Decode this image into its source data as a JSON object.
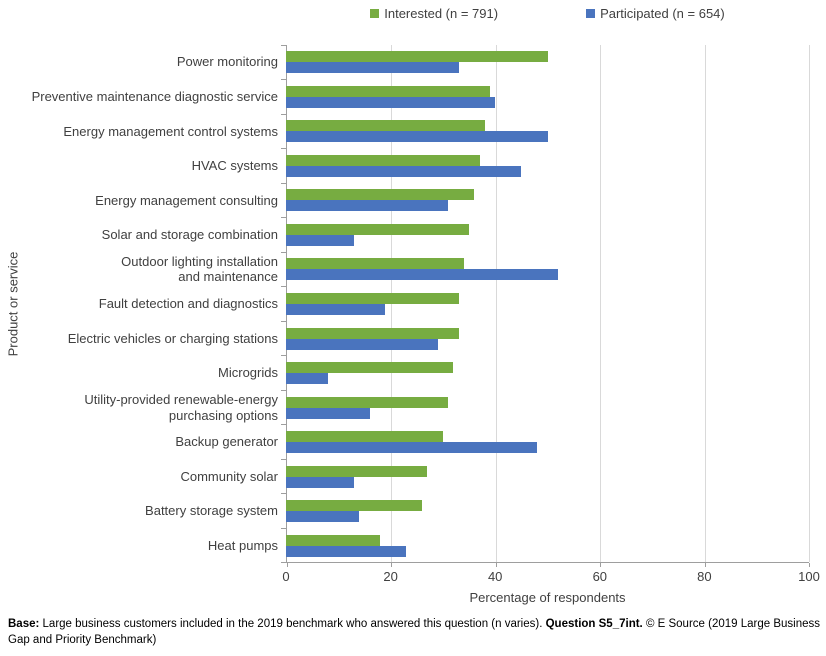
{
  "chart_data": {
    "type": "bar",
    "orientation": "horizontal",
    "title": "",
    "xlabel": "Percentage of respondents",
    "ylabel": "Product or service",
    "xlim": [
      0,
      100
    ],
    "xticks": [
      0,
      20,
      40,
      60,
      80,
      100
    ],
    "grid": "vertical-gridlines",
    "legend_position": "top",
    "categories": [
      "Power monitoring",
      "Preventive maintenance diagnostic service",
      "Energy management control systems",
      "HVAC systems",
      "Energy management consulting",
      "Solar and storage combination",
      "Outdoor lighting installation\nand maintenance",
      "Fault detection and diagnostics",
      "Electric vehicles or charging stations",
      "Microgrids",
      "Utility-provided renewable-energy\npurchasing options",
      "Backup generator",
      "Community solar",
      "Battery storage system",
      "Heat pumps"
    ],
    "series": [
      {
        "name": "Interested",
        "legend_label": "Interested (n = 791)",
        "color": "#77AC41",
        "values": [
          50,
          39,
          38,
          37,
          36,
          35,
          34,
          33,
          33,
          32,
          31,
          30,
          27,
          26,
          18
        ]
      },
      {
        "name": "Participated",
        "legend_label": "Participated (n = 654)",
        "color": "#4A74BE",
        "values": [
          33,
          40,
          50,
          45,
          31,
          13,
          52,
          19,
          29,
          8,
          16,
          48,
          13,
          14,
          23
        ]
      }
    ]
  },
  "footnote": {
    "segments": [
      {
        "text": "Base:",
        "bold": true
      },
      {
        "text": " Large business customers included in the 2019 benchmark who answered this question (n varies). ",
        "bold": false
      },
      {
        "text": "Question S5_7int.",
        "bold": true
      },
      {
        "text": " © E Source (2019 Large Business Gap and Priority Benchmark)",
        "bold": false
      }
    ]
  },
  "colors": {
    "interested": "#77AC41",
    "participated": "#4A74BE",
    "gridline": "#D9D9D9",
    "axis": "#9E9E9E",
    "text": "#404040"
  }
}
